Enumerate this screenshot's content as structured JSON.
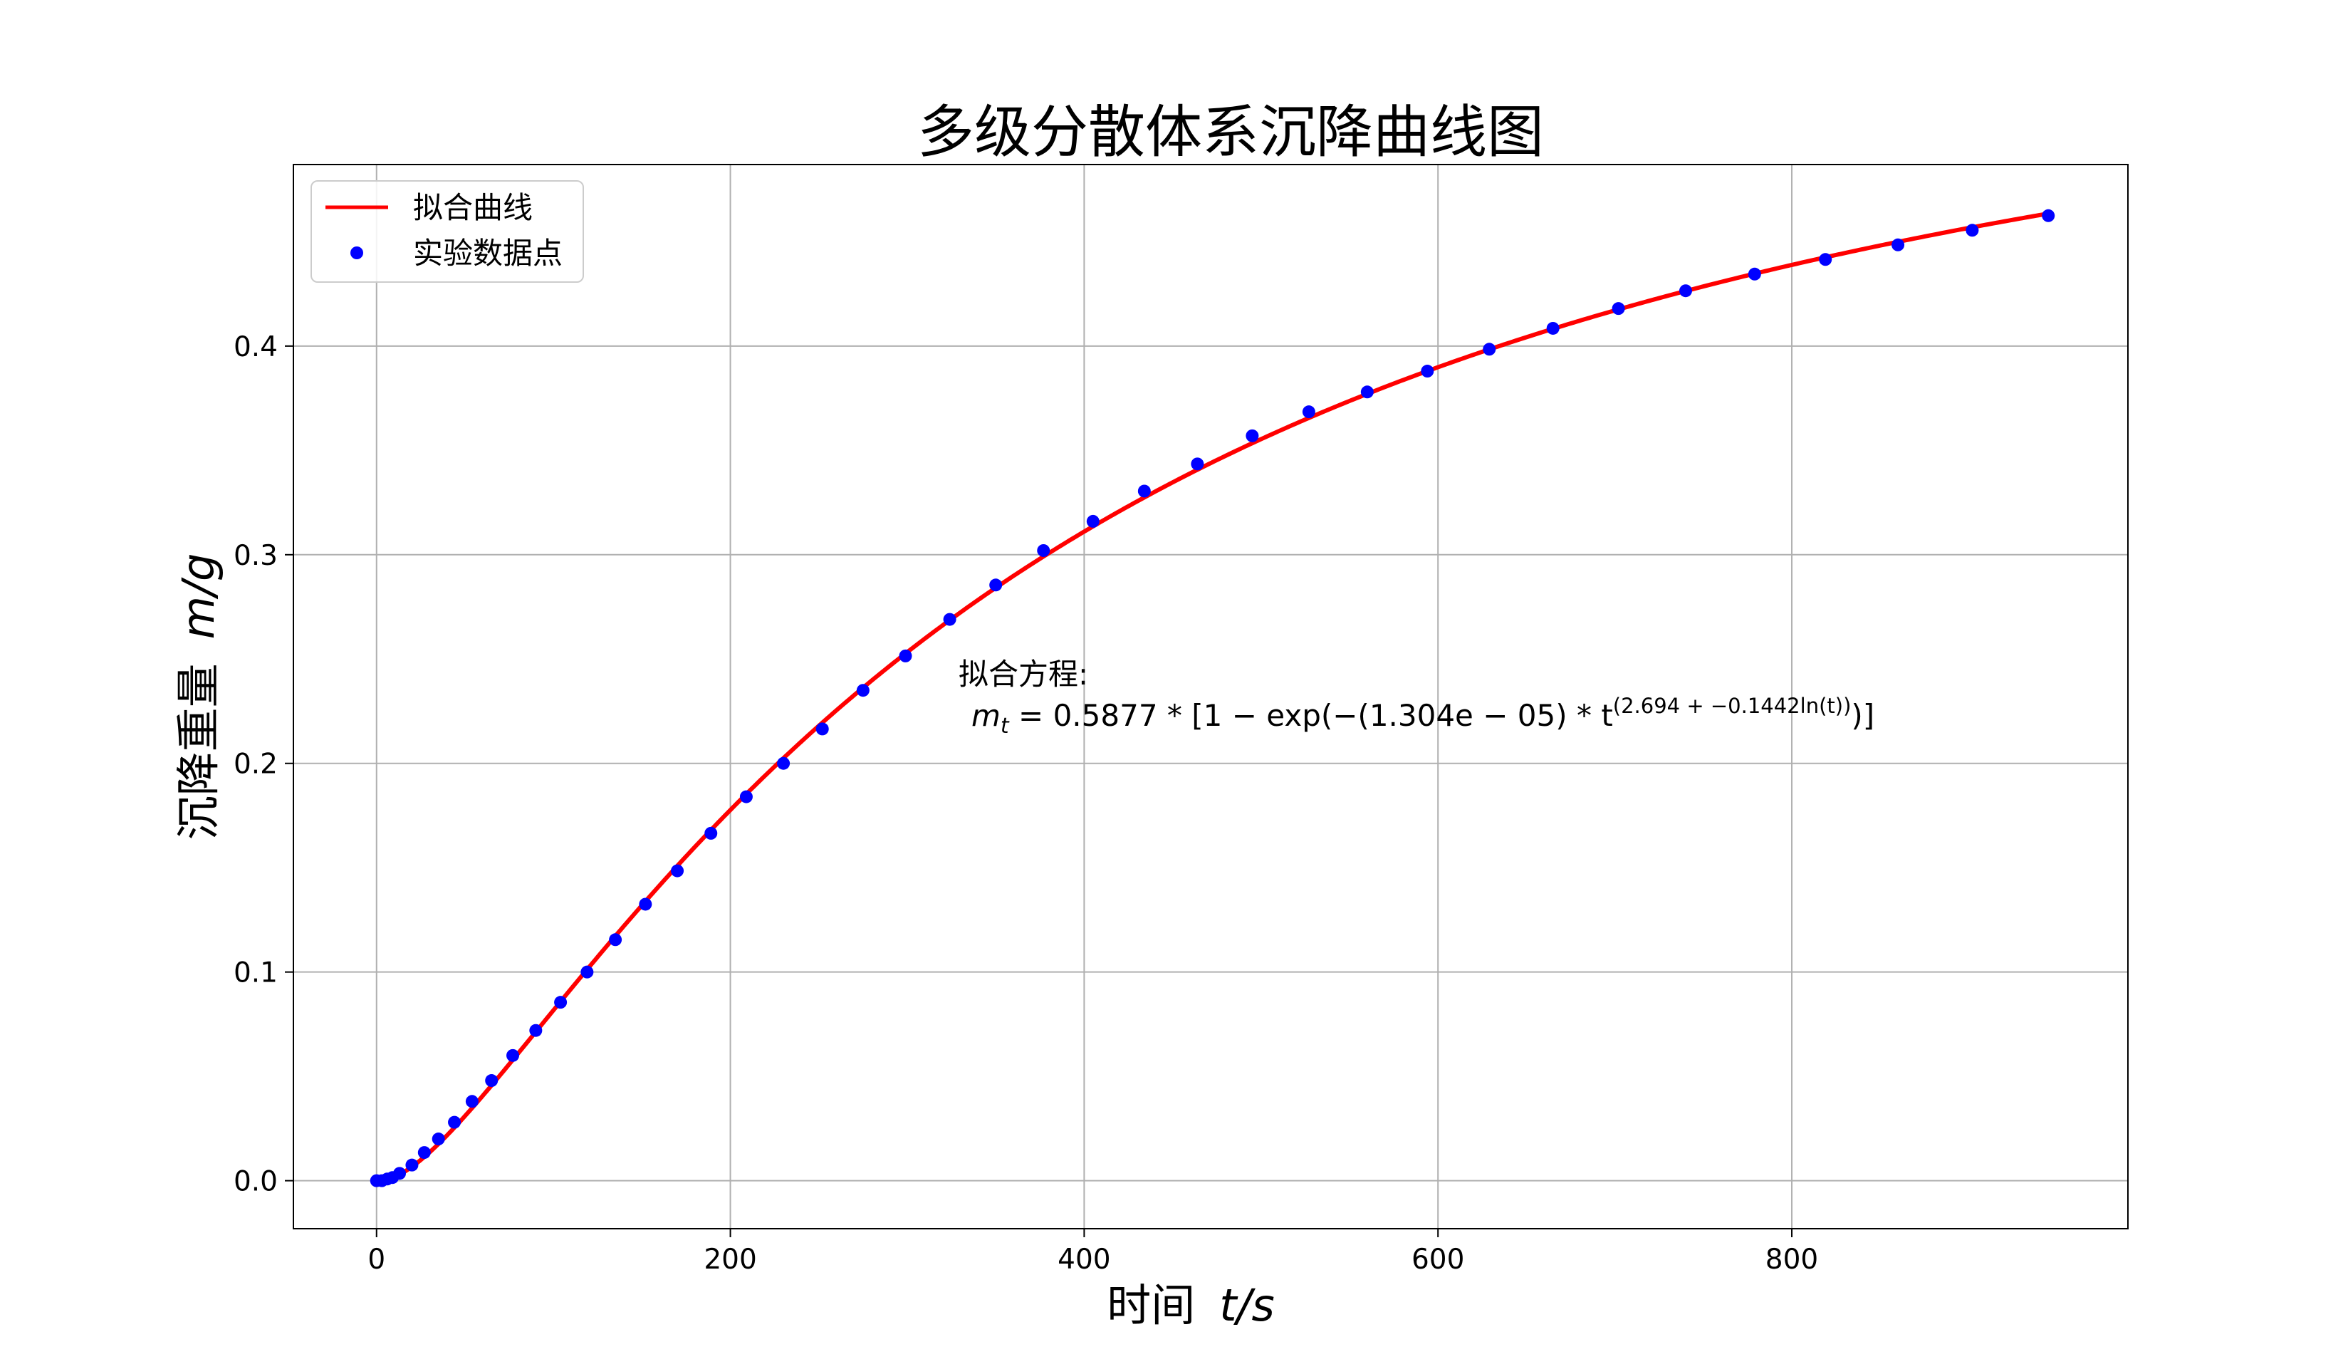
{
  "chart_data": {
    "type": "line",
    "title": "多级分散体系沉降曲线图",
    "xlabel": "时间",
    "xlabel_unit": "t/s",
    "ylabel": "沉降重量",
    "ylabel_unit": "m/g",
    "xlim": [
      -47,
      990
    ],
    "ylim": [
      -0.023,
      0.487
    ],
    "xticks": [
      0,
      200,
      400,
      600,
      800
    ],
    "yticks": [
      0.0,
      0.1,
      0.2,
      0.3,
      0.4
    ],
    "xtick_labels": [
      "0",
      "200",
      "400",
      "600",
      "800"
    ],
    "ytick_labels": [
      "0.0",
      "0.1",
      "0.2",
      "0.3",
      "0.4"
    ],
    "grid": true,
    "legend": {
      "position": "top-left",
      "entries": [
        {
          "label": "拟合曲线",
          "style": "line",
          "color": "#ff0000"
        },
        {
          "label": "实验数据点",
          "style": "marker",
          "color": "#0000ff"
        }
      ]
    },
    "annotation": {
      "heading": "拟合方程:",
      "equation": "m_t = 0.5877 * [1 - exp(-(1.304e-05) * t^(2.694 + -0.1442 ln(t)))]",
      "eq_lhs_base": "m",
      "eq_lhs_sub": "t",
      "eq_mid": " = 0.5877 * [1 − exp(−(1.304e − 05) * t",
      "eq_exp": "(2.694 + −0.1442ln(t))",
      "eq_tail": ")]"
    },
    "fit": {
      "name": "拟合曲线",
      "color": "#ff0000",
      "A": 0.5877,
      "k": 1.304e-05,
      "a": 2.694,
      "b": -0.1442,
      "t_range": [
        1,
        946
      ]
    },
    "series": [
      {
        "name": "实验数据点",
        "color": "#0000ff",
        "x": [
          0,
          3,
          6,
          9,
          13,
          20,
          27,
          35,
          44,
          54,
          65,
          77,
          90,
          104,
          119,
          135,
          152,
          170,
          189,
          209,
          230,
          252,
          275,
          299,
          324,
          350,
          377,
          405,
          434,
          464,
          495,
          527,
          560,
          594,
          629,
          665,
          702,
          740,
          779,
          819,
          860,
          902,
          945
        ],
        "y": [
          0.0,
          0.0,
          0.0008,
          0.0015,
          0.0035,
          0.0075,
          0.0135,
          0.02,
          0.028,
          0.038,
          0.048,
          0.06,
          0.072,
          0.0855,
          0.1,
          0.1155,
          0.1325,
          0.1485,
          0.1665,
          0.184,
          0.2,
          0.2165,
          0.235,
          0.2515,
          0.269,
          0.2855,
          0.302,
          0.316,
          0.3305,
          0.3435,
          0.357,
          0.3685,
          0.378,
          0.388,
          0.3985,
          0.4085,
          0.418,
          0.4265,
          0.4345,
          0.4415,
          0.4485,
          0.4555,
          0.4625
        ]
      }
    ]
  }
}
